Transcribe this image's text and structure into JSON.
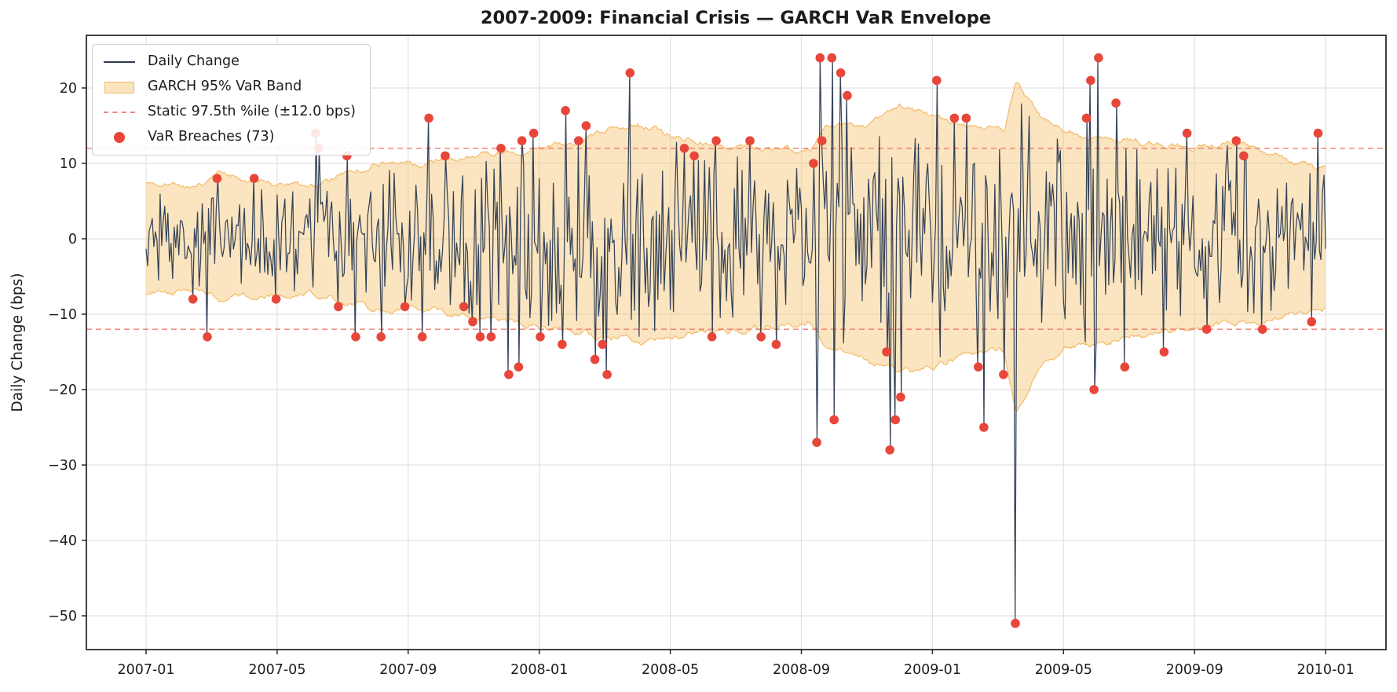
{
  "title": "2007-2009: Financial Crisis — GARCH VaR Envelope",
  "axes": {
    "ylabel": "Daily Change (bps)"
  },
  "legend": {
    "items": [
      {
        "type": "line",
        "label": "Daily Change"
      },
      {
        "type": "band",
        "label": "GARCH 95% VaR Band"
      },
      {
        "type": "dash",
        "label": "Static 97.5th %ile (±12.0 bps)"
      },
      {
        "type": "dot",
        "label": "VaR Breaches (73)"
      }
    ]
  },
  "colors": {
    "daily_line": "#2e3d52",
    "band_fill": "rgba(247,198,116,0.45)",
    "band_edge": "rgba(243,183,97,0.95)",
    "static_dash": "#ee6b5e",
    "breach_dot": "#e8463a",
    "grid": "#e2e2e2",
    "spine": "#2b2b2b",
    "text": "#1c1c1c"
  },
  "chart_data": {
    "type": "line",
    "title": "2007-2009: Financial Crisis — GARCH VaR Envelope",
    "xlabel": "",
    "ylabel": "Daily Change (bps)",
    "x_ticks": [
      {
        "m": 0,
        "label": "2007-01"
      },
      {
        "m": 4,
        "label": "2007-05"
      },
      {
        "m": 8,
        "label": "2007-09"
      },
      {
        "m": 12,
        "label": "2008-01"
      },
      {
        "m": 16,
        "label": "2008-05"
      },
      {
        "m": 20,
        "label": "2008-09"
      },
      {
        "m": 24,
        "label": "2009-01"
      },
      {
        "m": 28,
        "label": "2009-05"
      },
      {
        "m": 32,
        "label": "2009-09"
      },
      {
        "m": 36,
        "label": "2010-01"
      }
    ],
    "y_ticks": [
      {
        "v": 20,
        "label": "20"
      },
      {
        "v": 10,
        "label": "10"
      },
      {
        "v": 0,
        "label": "0"
      },
      {
        "v": -10,
        "label": "−10"
      },
      {
        "v": -20,
        "label": "−20"
      },
      {
        "v": -30,
        "label": "−30"
      },
      {
        "v": -40,
        "label": "−40"
      },
      {
        "v": -50,
        "label": "−50"
      }
    ],
    "ylim": [
      -54.5,
      27
    ],
    "x_span_months": 36,
    "grid": true,
    "legend_position": "upper left",
    "static_threshold_bps": 12.0,
    "breach_count": 73,
    "series_names": [
      "Daily Change",
      "GARCH 95% VaR Band",
      "Static 97.5th %ile (±12.0 bps)",
      "VaR Breaches (73)"
    ],
    "garch_band_envelope": [
      [
        0,
        7.6,
        -7.2
      ],
      [
        1,
        7.2,
        -6.9
      ],
      [
        1.8,
        7.2,
        -7.0
      ],
      [
        2.3,
        8.5,
        -7.9
      ],
      [
        3,
        7.8,
        -7.5
      ],
      [
        4,
        7.2,
        -7.2
      ],
      [
        5.6,
        7.3,
        -7.5
      ],
      [
        6.2,
        9.0,
        -8.8
      ],
      [
        7,
        10.0,
        -9.6
      ],
      [
        8,
        9.6,
        -9.2
      ],
      [
        9,
        10.2,
        -9.7
      ],
      [
        10,
        10.8,
        -10.2
      ],
      [
        11,
        11.6,
        -11.0
      ],
      [
        12,
        12.4,
        -11.6
      ],
      [
        13,
        12.2,
        -11.9
      ],
      [
        14,
        14.2,
        -13.2
      ],
      [
        15,
        15.2,
        -13.6
      ],
      [
        16,
        13.8,
        -12.9
      ],
      [
        17,
        12.9,
        -12.3
      ],
      [
        18,
        12.6,
        -12.2
      ],
      [
        19,
        12.0,
        -11.6
      ],
      [
        20.3,
        11.6,
        -11.2
      ],
      [
        20.7,
        15.0,
        -14.0
      ],
      [
        21.3,
        15.5,
        -14.8
      ],
      [
        22,
        15.0,
        -16.0
      ],
      [
        23,
        17.5,
        -17.5
      ],
      [
        24,
        16.2,
        -17.0
      ],
      [
        25,
        15.0,
        -15.5
      ],
      [
        26.2,
        14.3,
        -14.8
      ],
      [
        26.55,
        20.5,
        -23.0
      ],
      [
        27.3,
        16.0,
        -16.5
      ],
      [
        28,
        14.2,
        -14.6
      ],
      [
        29,
        13.6,
        -13.8
      ],
      [
        30,
        13.0,
        -13.0
      ],
      [
        31,
        12.5,
        -12.3
      ],
      [
        32,
        12.2,
        -11.8
      ],
      [
        33,
        12.7,
        -11.4
      ],
      [
        34,
        11.8,
        -10.8
      ],
      [
        35,
        10.5,
        -9.8
      ],
      [
        36,
        9.0,
        -9.0
      ]
    ],
    "breaches": [
      [
        1.43,
        -8
      ],
      [
        1.87,
        -13
      ],
      [
        2.17,
        8
      ],
      [
        3.3,
        8
      ],
      [
        3.97,
        -8
      ],
      [
        5.17,
        14
      ],
      [
        5.27,
        12
      ],
      [
        5.87,
        -9
      ],
      [
        6.13,
        11
      ],
      [
        6.4,
        -13
      ],
      [
        7.17,
        -13
      ],
      [
        7.9,
        -9
      ],
      [
        8.43,
        -13
      ],
      [
        8.63,
        16
      ],
      [
        9.13,
        11
      ],
      [
        9.7,
        -9
      ],
      [
        9.97,
        -11
      ],
      [
        10.2,
        -13
      ],
      [
        10.53,
        -13
      ],
      [
        10.83,
        12
      ],
      [
        11.07,
        -18
      ],
      [
        11.37,
        -17
      ],
      [
        11.47,
        13
      ],
      [
        11.83,
        14
      ],
      [
        12.03,
        -13
      ],
      [
        12.7,
        -14
      ],
      [
        12.8,
        17
      ],
      [
        13.2,
        13
      ],
      [
        13.43,
        15
      ],
      [
        13.7,
        -16
      ],
      [
        13.93,
        -14
      ],
      [
        14.07,
        -18
      ],
      [
        14.77,
        22
      ],
      [
        16.43,
        12
      ],
      [
        16.73,
        11
      ],
      [
        17.27,
        -13
      ],
      [
        17.4,
        13
      ],
      [
        18.43,
        13
      ],
      [
        18.77,
        -13
      ],
      [
        19.23,
        -14
      ],
      [
        20.37,
        10
      ],
      [
        20.47,
        -27
      ],
      [
        20.57,
        24
      ],
      [
        20.63,
        13
      ],
      [
        20.93,
        24
      ],
      [
        21.0,
        -24
      ],
      [
        21.2,
        22
      ],
      [
        21.4,
        19
      ],
      [
        22.6,
        -15
      ],
      [
        22.7,
        -28
      ],
      [
        22.87,
        -24
      ],
      [
        23.03,
        -21
      ],
      [
        24.13,
        21
      ],
      [
        24.67,
        16
      ],
      [
        25.03,
        16
      ],
      [
        25.4,
        -17
      ],
      [
        25.57,
        -25
      ],
      [
        26.17,
        -18
      ],
      [
        26.53,
        -51
      ],
      [
        28.7,
        16
      ],
      [
        28.83,
        21
      ],
      [
        28.93,
        -20
      ],
      [
        29.07,
        24
      ],
      [
        29.6,
        18
      ],
      [
        29.87,
        -17
      ],
      [
        31.07,
        -15
      ],
      [
        31.77,
        14
      ],
      [
        32.37,
        -12
      ],
      [
        33.27,
        13
      ],
      [
        33.5,
        11
      ],
      [
        34.07,
        -12
      ],
      [
        35.57,
        -11
      ],
      [
        35.77,
        14
      ]
    ],
    "daily_series_spec": {
      "n_points": 757,
      "points_per_month": 21,
      "noise_seed": 1337,
      "band_sigma_ratio": 0.25,
      "description": "daily changes synthesized from GARCH band envelope; breach days pinned to breaches list"
    }
  }
}
